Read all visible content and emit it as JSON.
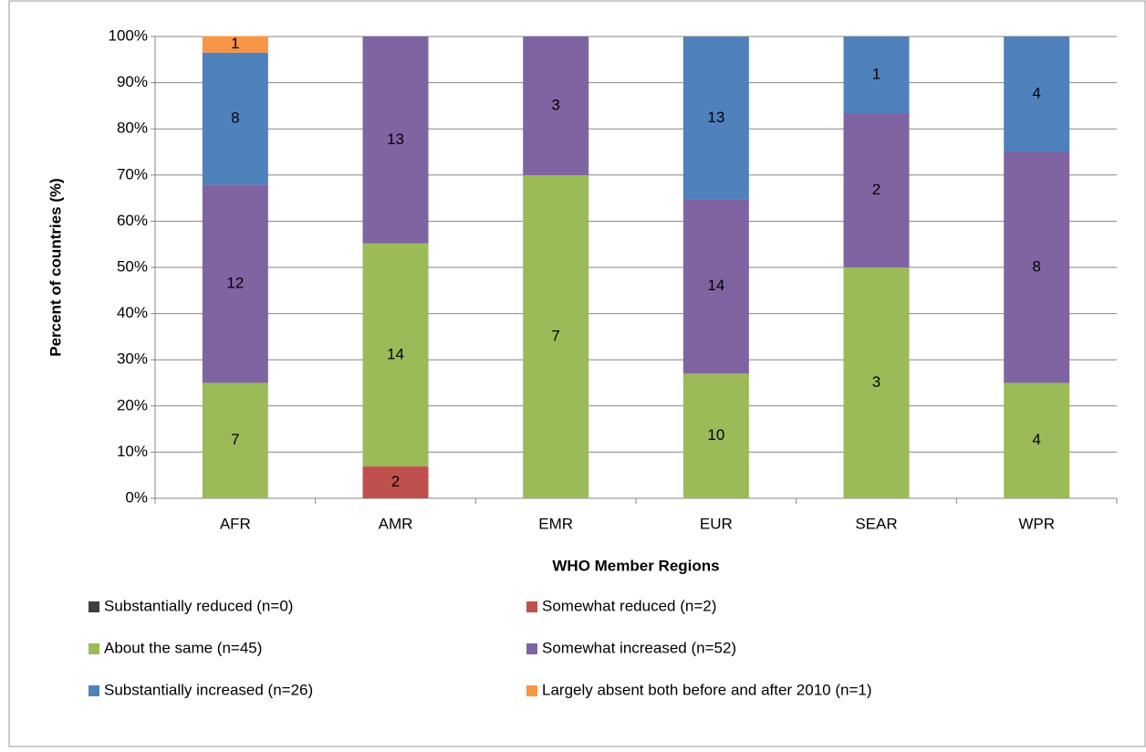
{
  "chart_data": {
    "type": "stacked_bar",
    "x_label": "WHO Member Regions",
    "y_label": "Percent of countries (%)",
    "categories": [
      "AFR",
      "AMR",
      "EMR",
      "EUR",
      "SEAR",
      "WPR"
    ],
    "series": [
      {
        "name": "Substantially reduced (n=0)",
        "color": "#3f3f3f",
        "values": [
          0,
          0,
          0,
          0,
          0,
          0
        ],
        "counts": [
          null,
          null,
          null,
          null,
          null,
          null
        ]
      },
      {
        "name": "Somewhat reduced (n=2)",
        "color": "#c0504d",
        "values": [
          0,
          6.9,
          0,
          0,
          0,
          0
        ],
        "counts": [
          null,
          2,
          null,
          null,
          null,
          null
        ]
      },
      {
        "name": "About the same (n=45)",
        "color": "#9bbb59",
        "values": [
          25,
          48.3,
          70,
          27,
          50,
          25
        ],
        "counts": [
          7,
          14,
          7,
          10,
          3,
          4
        ]
      },
      {
        "name": "Somewhat increased (n=52)",
        "color": "#8064a2",
        "values": [
          42.9,
          44.8,
          30,
          37.8,
          33.3,
          50
        ],
        "counts": [
          12,
          13,
          3,
          14,
          2,
          8
        ]
      },
      {
        "name": "Substantially increased (n=26)",
        "color": "#4f81bd",
        "values": [
          28.6,
          0,
          0,
          35.1,
          16.7,
          25
        ],
        "counts": [
          8,
          null,
          null,
          13,
          1,
          4
        ]
      },
      {
        "name": "Largely absent both before and after 2010 (n=1)",
        "color": "#f79646",
        "values": [
          3.6,
          0,
          0,
          0,
          0,
          0
        ],
        "counts": [
          1,
          null,
          null,
          null,
          null,
          null
        ]
      }
    ],
    "ylim": [
      0,
      100
    ],
    "yticks": [
      {
        "value": 0,
        "label": "0%"
      },
      {
        "value": 10,
        "label": "10%"
      },
      {
        "value": 20,
        "label": "20%"
      },
      {
        "value": 30,
        "label": "30%"
      },
      {
        "value": 40,
        "label": "40%"
      },
      {
        "value": 50,
        "label": "50%"
      },
      {
        "value": 60,
        "label": "60%"
      },
      {
        "value": 70,
        "label": "70%"
      },
      {
        "value": 80,
        "label": "80%"
      },
      {
        "value": 90,
        "label": "90%"
      },
      {
        "value": 100,
        "label": "100%"
      }
    ],
    "grid": true,
    "legend": "bottom"
  }
}
